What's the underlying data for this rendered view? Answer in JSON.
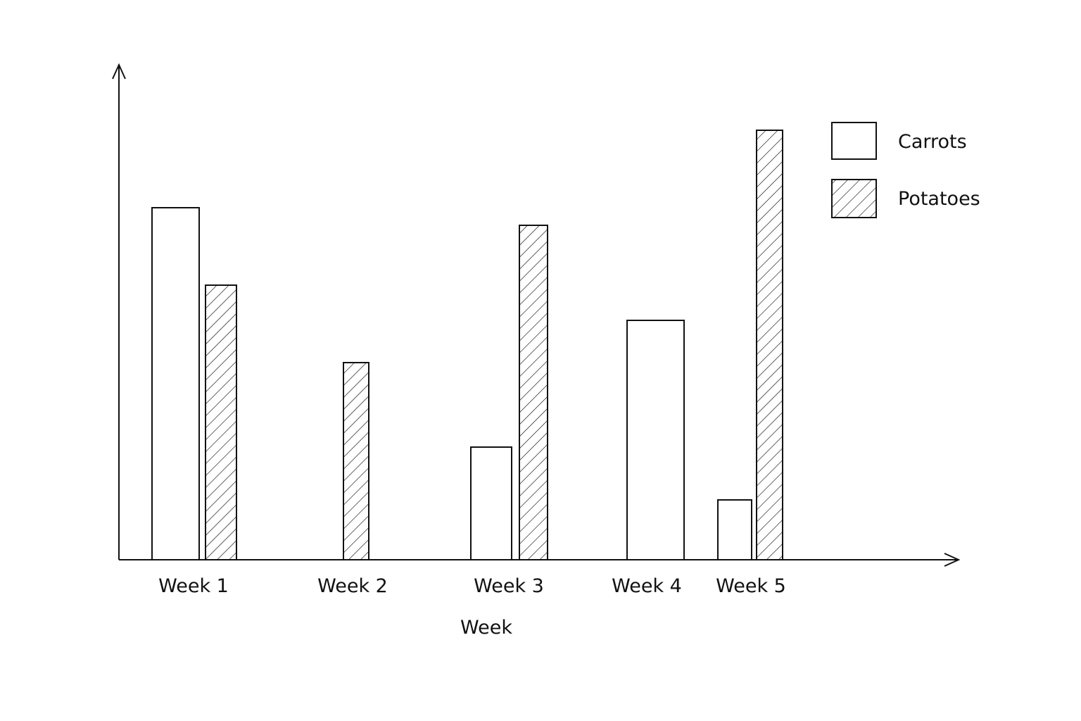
{
  "chart_data": {
    "type": "bar",
    "title": "",
    "xlabel": "Week",
    "ylabel": "",
    "categories": [
      "Week 1",
      "Week 2",
      "Week 3",
      "Week 4",
      "Week 5"
    ],
    "series": [
      {
        "name": "Carrots",
        "values": [
          5.0,
          0,
          1.6,
          3.4,
          0.85
        ],
        "fill": "plain"
      },
      {
        "name": "Potatoes",
        "values": [
          3.9,
          2.8,
          4.75,
          0,
          6.1
        ],
        "fill": "hatched"
      }
    ],
    "ylim": [
      0,
      7
    ],
    "grid": false,
    "legend_position": "top-right"
  },
  "colors": {
    "background": "#ffffff",
    "stroke": "#111111",
    "bar_fill": "#ffffff"
  }
}
